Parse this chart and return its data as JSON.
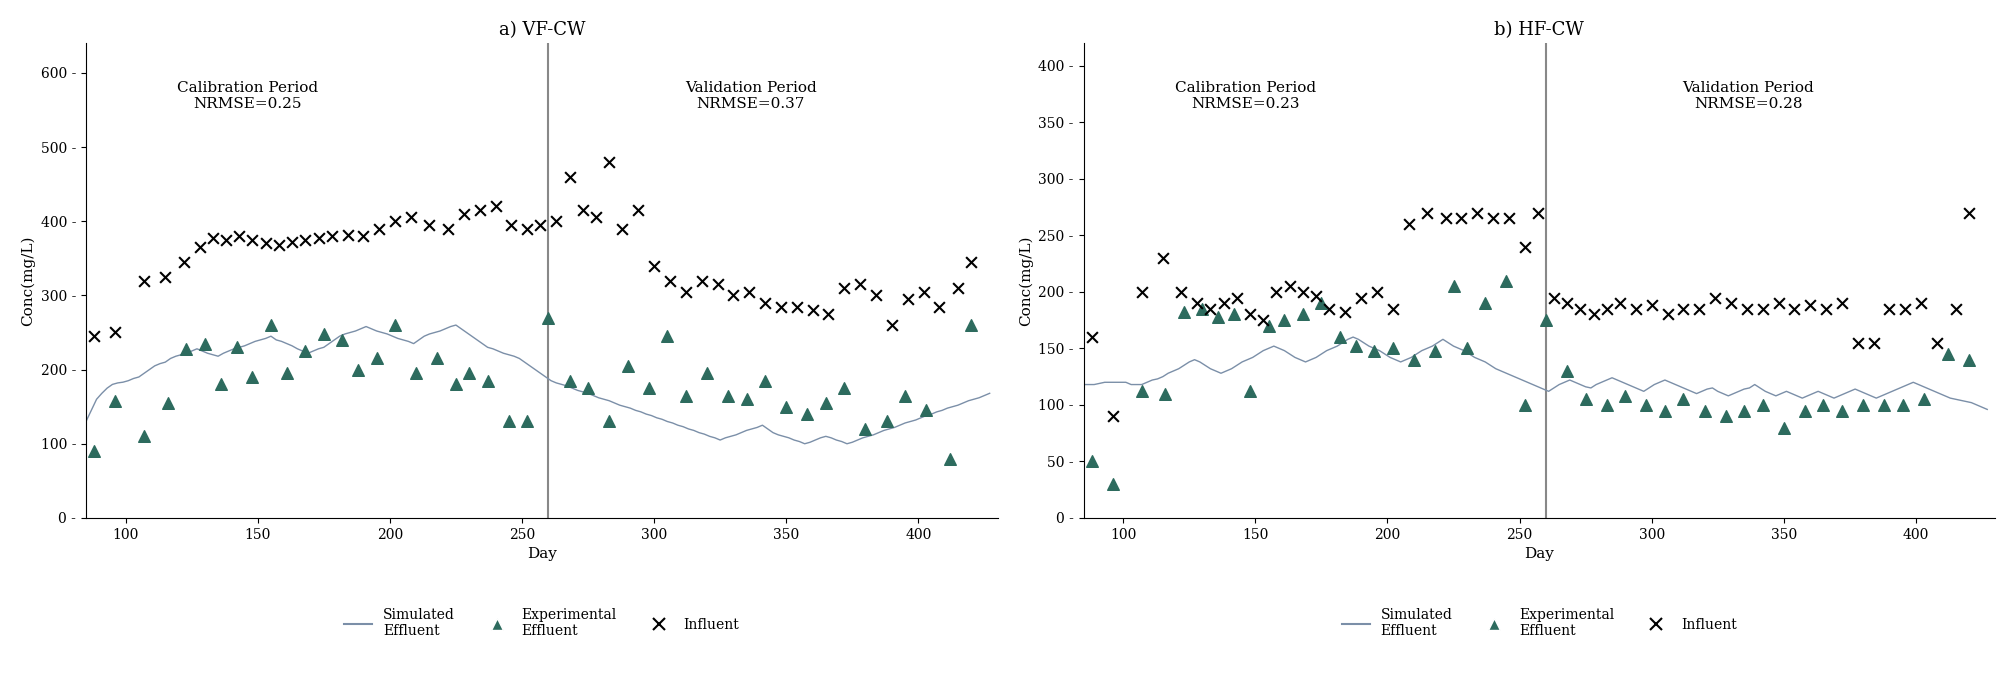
{
  "panel_a": {
    "title": "a) VF-CW",
    "calib_label": "Calibration Period\nNRMSE=0.25",
    "valid_label": "Validation Period\nNRMSE=0.37",
    "divider_day": 260,
    "ylim": [
      0,
      640
    ],
    "yticks": [
      0,
      100,
      200,
      300,
      400,
      500,
      600
    ],
    "xlim": [
      85,
      430
    ],
    "xticks": [
      100,
      150,
      200,
      250,
      300,
      350,
      400
    ],
    "simulated_days": [
      85,
      87,
      89,
      91,
      93,
      95,
      97,
      99,
      101,
      103,
      105,
      107,
      109,
      111,
      113,
      115,
      117,
      119,
      121,
      123,
      125,
      127,
      129,
      131,
      133,
      135,
      137,
      139,
      141,
      143,
      145,
      147,
      149,
      151,
      153,
      155,
      157,
      159,
      161,
      163,
      165,
      167,
      169,
      171,
      173,
      175,
      177,
      179,
      181,
      183,
      185,
      187,
      189,
      191,
      193,
      195,
      197,
      199,
      201,
      203,
      205,
      207,
      209,
      211,
      213,
      215,
      217,
      219,
      221,
      223,
      225,
      227,
      229,
      231,
      233,
      235,
      237,
      239,
      241,
      243,
      245,
      247,
      249,
      251,
      253,
      255,
      257,
      259,
      261,
      263,
      265,
      267,
      269,
      271,
      273,
      275,
      277,
      279,
      281,
      283,
      285,
      287,
      289,
      291,
      293,
      295,
      297,
      299,
      301,
      303,
      305,
      307,
      309,
      311,
      313,
      315,
      317,
      319,
      321,
      323,
      325,
      327,
      329,
      331,
      333,
      335,
      337,
      339,
      341,
      343,
      345,
      347,
      349,
      351,
      353,
      355,
      357,
      359,
      361,
      363,
      365,
      367,
      369,
      371,
      373,
      375,
      377,
      379,
      381,
      383,
      385,
      387,
      389,
      391,
      393,
      395,
      397,
      399,
      401,
      403,
      405,
      407,
      409,
      411,
      413,
      415,
      417,
      419,
      421,
      423,
      425,
      427
    ],
    "simulated_vals": [
      130,
      145,
      160,
      168,
      175,
      180,
      182,
      183,
      185,
      188,
      190,
      195,
      200,
      205,
      208,
      210,
      215,
      218,
      220,
      222,
      225,
      228,
      225,
      222,
      220,
      218,
      222,
      225,
      228,
      230,
      232,
      235,
      238,
      240,
      242,
      245,
      240,
      238,
      235,
      232,
      228,
      225,
      222,
      225,
      228,
      230,
      235,
      240,
      245,
      248,
      250,
      252,
      255,
      258,
      255,
      252,
      250,
      248,
      245,
      242,
      240,
      238,
      235,
      240,
      245,
      248,
      250,
      252,
      255,
      258,
      260,
      255,
      250,
      245,
      240,
      235,
      230,
      228,
      225,
      222,
      220,
      218,
      215,
      210,
      205,
      200,
      195,
      190,
      185,
      182,
      180,
      178,
      175,
      172,
      170,
      168,
      165,
      162,
      160,
      158,
      155,
      152,
      150,
      148,
      145,
      143,
      140,
      138,
      135,
      133,
      130,
      128,
      125,
      123,
      120,
      118,
      115,
      113,
      110,
      108,
      105,
      108,
      110,
      112,
      115,
      118,
      120,
      122,
      125,
      120,
      115,
      112,
      110,
      108,
      105,
      103,
      100,
      102,
      105,
      108,
      110,
      108,
      105,
      103,
      100,
      102,
      105,
      108,
      110,
      112,
      115,
      118,
      120,
      122,
      125,
      128,
      130,
      132,
      135,
      138,
      140,
      143,
      145,
      148,
      150,
      152,
      155,
      158,
      160,
      162,
      165,
      168
    ],
    "exp_days": [
      88,
      96,
      107,
      116,
      123,
      130,
      136,
      142,
      148,
      155,
      161,
      168,
      175,
      182,
      188,
      195,
      202,
      210,
      218,
      225,
      230,
      237,
      245,
      252,
      260,
      268,
      275,
      283,
      290,
      298,
      305,
      312,
      320,
      328,
      335,
      342,
      350,
      358,
      365,
      372,
      380,
      388,
      395,
      403,
      412,
      420
    ],
    "exp_vals": [
      90,
      158,
      110,
      155,
      228,
      235,
      180,
      230,
      190,
      260,
      195,
      225,
      248,
      240,
      200,
      215,
      260,
      195,
      215,
      180,
      195,
      185,
      130,
      130,
      270,
      185,
      175,
      130,
      205,
      175,
      245,
      165,
      195,
      165,
      160,
      185,
      150,
      140,
      155,
      175,
      120,
      130,
      165,
      145,
      80,
      260
    ],
    "influent_days": [
      88,
      96,
      107,
      115,
      122,
      128,
      133,
      138,
      143,
      148,
      153,
      158,
      163,
      168,
      173,
      178,
      184,
      190,
      196,
      202,
      208,
      215,
      222,
      228,
      234,
      240,
      246,
      252,
      257,
      263,
      268,
      273,
      278,
      283,
      288,
      294,
      300,
      306,
      312,
      318,
      324,
      330,
      336,
      342,
      348,
      354,
      360,
      366,
      372,
      378,
      384,
      390,
      396,
      402,
      408,
      415,
      420
    ],
    "influent_vals": [
      245,
      250,
      320,
      325,
      345,
      365,
      378,
      375,
      380,
      375,
      370,
      368,
      372,
      375,
      378,
      380,
      382,
      380,
      390,
      400,
      405,
      395,
      390,
      410,
      415,
      420,
      395,
      390,
      395,
      400,
      460,
      415,
      405,
      480,
      390,
      415,
      340,
      320,
      305,
      320,
      315,
      300,
      305,
      290,
      285,
      285,
      280,
      275,
      310,
      315,
      300,
      260,
      295,
      305,
      285,
      310,
      345
    ]
  },
  "panel_b": {
    "title": "b) HF-CW",
    "calib_label": "Calibration Period\nNRMSE=0.23",
    "valid_label": "Validation Period\nNRMSE=0.28",
    "divider_day": 260,
    "ylim": [
      0,
      420
    ],
    "yticks": [
      0,
      50,
      100,
      150,
      200,
      250,
      300,
      350,
      400
    ],
    "xlim": [
      85,
      430
    ],
    "xticks": [
      100,
      150,
      200,
      250,
      300,
      350,
      400
    ],
    "simulated_days": [
      85,
      87,
      89,
      91,
      93,
      95,
      97,
      99,
      101,
      103,
      105,
      107,
      109,
      111,
      113,
      115,
      117,
      119,
      121,
      123,
      125,
      127,
      129,
      131,
      133,
      135,
      137,
      139,
      141,
      143,
      145,
      147,
      149,
      151,
      153,
      155,
      157,
      159,
      161,
      163,
      165,
      167,
      169,
      171,
      173,
      175,
      177,
      179,
      181,
      183,
      185,
      187,
      189,
      191,
      193,
      195,
      197,
      199,
      201,
      203,
      205,
      207,
      209,
      211,
      213,
      215,
      217,
      219,
      221,
      223,
      225,
      227,
      229,
      231,
      233,
      235,
      237,
      239,
      241,
      243,
      245,
      247,
      249,
      251,
      253,
      255,
      257,
      259,
      261,
      263,
      265,
      267,
      269,
      271,
      273,
      275,
      277,
      279,
      281,
      283,
      285,
      287,
      289,
      291,
      293,
      295,
      297,
      299,
      301,
      303,
      305,
      307,
      309,
      311,
      313,
      315,
      317,
      319,
      321,
      323,
      325,
      327,
      329,
      331,
      333,
      335,
      337,
      339,
      341,
      343,
      345,
      347,
      349,
      351,
      353,
      355,
      357,
      359,
      361,
      363,
      365,
      367,
      369,
      371,
      373,
      375,
      377,
      379,
      381,
      383,
      385,
      387,
      389,
      391,
      393,
      395,
      397,
      399,
      401,
      403,
      405,
      407,
      409,
      411,
      413,
      415,
      417,
      419,
      421,
      423,
      425,
      427
    ],
    "simulated_vals": [
      118,
      118,
      118,
      119,
      120,
      120,
      120,
      120,
      120,
      118,
      118,
      118,
      120,
      122,
      123,
      125,
      128,
      130,
      132,
      135,
      138,
      140,
      138,
      135,
      132,
      130,
      128,
      130,
      132,
      135,
      138,
      140,
      142,
      145,
      148,
      150,
      152,
      150,
      148,
      145,
      142,
      140,
      138,
      140,
      142,
      145,
      148,
      150,
      152,
      155,
      158,
      160,
      158,
      155,
      152,
      150,
      148,
      145,
      142,
      140,
      138,
      140,
      142,
      145,
      148,
      150,
      152,
      155,
      158,
      155,
      152,
      150,
      148,
      145,
      142,
      140,
      138,
      135,
      132,
      130,
      128,
      126,
      124,
      122,
      120,
      118,
      116,
      114,
      112,
      115,
      118,
      120,
      122,
      120,
      118,
      116,
      115,
      118,
      120,
      122,
      124,
      122,
      120,
      118,
      116,
      114,
      112,
      115,
      118,
      120,
      122,
      120,
      118,
      116,
      114,
      112,
      110,
      112,
      114,
      115,
      112,
      110,
      108,
      110,
      112,
      114,
      115,
      118,
      115,
      112,
      110,
      108,
      110,
      112,
      110,
      108,
      106,
      108,
      110,
      112,
      110,
      108,
      106,
      108,
      110,
      112,
      114,
      112,
      110,
      108,
      106,
      108,
      110,
      112,
      114,
      116,
      118,
      120,
      118,
      116,
      114,
      112,
      110,
      108,
      106,
      105,
      104,
      103,
      102,
      100,
      98,
      96
    ],
    "exp_days": [
      88,
      96,
      107,
      116,
      123,
      130,
      136,
      142,
      148,
      155,
      161,
      168,
      175,
      182,
      188,
      195,
      202,
      210,
      218,
      225,
      230,
      237,
      245,
      252,
      260,
      268,
      275,
      283,
      290,
      298,
      305,
      312,
      320,
      328,
      335,
      342,
      350,
      358,
      365,
      372,
      380,
      388,
      395,
      403,
      412,
      420
    ],
    "exp_vals": [
      50,
      30,
      112,
      110,
      182,
      185,
      178,
      180,
      112,
      170,
      175,
      180,
      190,
      160,
      152,
      148,
      150,
      140,
      148,
      205,
      150,
      190,
      210,
      100,
      175,
      130,
      105,
      100,
      108,
      100,
      95,
      105,
      95,
      90,
      95,
      100,
      80,
      95,
      100,
      95,
      100,
      100,
      100,
      105,
      145,
      140
    ],
    "influent_days": [
      88,
      96,
      107,
      115,
      122,
      128,
      133,
      138,
      143,
      148,
      153,
      158,
      163,
      168,
      173,
      178,
      184,
      190,
      196,
      202,
      208,
      215,
      222,
      228,
      234,
      240,
      246,
      252,
      257,
      263,
      268,
      273,
      278,
      283,
      288,
      294,
      300,
      306,
      312,
      318,
      324,
      330,
      336,
      342,
      348,
      354,
      360,
      366,
      372,
      378,
      384,
      390,
      396,
      402,
      408,
      415,
      420
    ],
    "influent_vals": [
      160,
      90,
      200,
      230,
      200,
      190,
      185,
      190,
      195,
      180,
      175,
      200,
      205,
      200,
      196,
      185,
      182,
      195,
      200,
      185,
      260,
      270,
      265,
      265,
      270,
      265,
      265,
      240,
      270,
      195,
      190,
      185,
      180,
      185,
      190,
      185,
      188,
      180,
      185,
      185,
      195,
      190,
      185,
      185,
      190,
      185,
      188,
      185,
      190,
      155,
      155,
      185,
      185,
      190,
      155,
      185,
      270
    ]
  },
  "line_color": "#7b8fa8",
  "triangle_color": "#2d6b5e",
  "cross_color": "#000000",
  "divider_color": "#888888",
  "ylabel": "Conc(mg/L)",
  "xlabel": "Day",
  "legend_sim": "Simulated\nEffluent",
  "legend_exp": "Experimental\nEffluent",
  "legend_inf": "Influent"
}
